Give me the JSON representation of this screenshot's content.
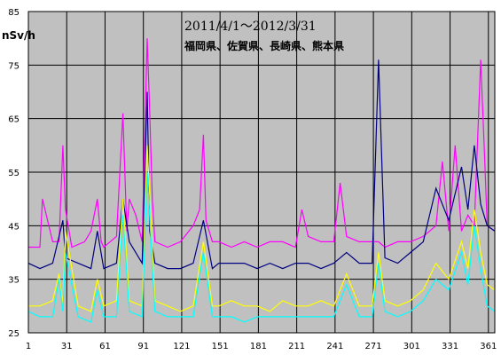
{
  "chart_data": {
    "type": "line",
    "title": "2011/4/1～2012/3/31",
    "subtitle": "福岡県、佐賀県、長崎県、熊本県",
    "ylabel": "nSv/h",
    "xlabel": "",
    "xlim": [
      1,
      366
    ],
    "ylim": [
      25,
      85
    ],
    "grid": true,
    "legend": "none",
    "background": "#c0c0c0",
    "x_ticks": [
      1,
      31,
      61,
      91,
      121,
      151,
      181,
      211,
      241,
      271,
      301,
      331,
      361
    ],
    "y_ticks": [
      25,
      35,
      45,
      55,
      65,
      75,
      85
    ],
    "series": [
      {
        "color": "#ff00ff",
        "x": [
          1,
          10,
          12,
          20,
          25,
          28,
          30,
          35,
          45,
          50,
          55,
          58,
          60,
          65,
          70,
          75,
          78,
          80,
          85,
          90,
          94,
          96,
          98,
          100,
          110,
          120,
          130,
          135,
          138,
          140,
          145,
          150,
          160,
          170,
          180,
          190,
          200,
          210,
          215,
          220,
          230,
          240,
          245,
          250,
          260,
          270,
          275,
          280,
          290,
          300,
          310,
          320,
          325,
          330,
          335,
          340,
          345,
          350,
          355,
          358,
          360,
          366
        ],
        "values": [
          41,
          41,
          50,
          42,
          42,
          60,
          48,
          41,
          42,
          44,
          50,
          42,
          41,
          42,
          43,
          66,
          44,
          50,
          47,
          42,
          80,
          66,
          50,
          42,
          41,
          42,
          45,
          48,
          62,
          46,
          42,
          42,
          41,
          42,
          41,
          42,
          42,
          41,
          48,
          43,
          42,
          42,
          53,
          43,
          42,
          42,
          42,
          41,
          42,
          42,
          43,
          45,
          57,
          44,
          60,
          44,
          47,
          45,
          76,
          58,
          45,
          44
        ]
      },
      {
        "color": "#000080",
        "x": [
          1,
          10,
          20,
          28,
          30,
          40,
          50,
          55,
          60,
          70,
          75,
          80,
          90,
          94,
          96,
          100,
          110,
          120,
          130,
          138,
          145,
          150,
          160,
          170,
          180,
          190,
          200,
          210,
          220,
          230,
          240,
          250,
          260,
          270,
          275,
          280,
          290,
          300,
          310,
          320,
          330,
          340,
          345,
          350,
          355,
          360,
          366
        ],
        "values": [
          38,
          37,
          38,
          46,
          39,
          38,
          37,
          44,
          37,
          38,
          50,
          42,
          38,
          70,
          44,
          38,
          37,
          37,
          38,
          46,
          37,
          38,
          38,
          38,
          37,
          38,
          37,
          38,
          38,
          37,
          38,
          40,
          38,
          38,
          76,
          39,
          38,
          40,
          42,
          52,
          46,
          56,
          48,
          60,
          49,
          45,
          44
        ]
      },
      {
        "color": "#ffff00",
        "x": [
          1,
          10,
          20,
          25,
          28,
          30,
          40,
          50,
          55,
          60,
          70,
          75,
          80,
          90,
          94,
          100,
          110,
          120,
          130,
          138,
          145,
          150,
          160,
          170,
          180,
          190,
          200,
          210,
          220,
          230,
          240,
          250,
          260,
          270,
          275,
          280,
          290,
          300,
          310,
          320,
          330,
          340,
          345,
          350,
          355,
          360,
          366
        ],
        "values": [
          30,
          30,
          31,
          36,
          30,
          44,
          30,
          29,
          35,
          30,
          31,
          50,
          31,
          30,
          60,
          31,
          30,
          29,
          30,
          42,
          30,
          30,
          31,
          30,
          30,
          29,
          31,
          30,
          30,
          31,
          30,
          36,
          30,
          30,
          40,
          31,
          30,
          31,
          33,
          38,
          35,
          42,
          37,
          48,
          40,
          34,
          33
        ]
      },
      {
        "color": "#00ffff",
        "x": [
          1,
          10,
          20,
          25,
          28,
          30,
          40,
          50,
          55,
          60,
          70,
          75,
          80,
          90,
          94,
          100,
          110,
          120,
          130,
          138,
          145,
          150,
          160,
          170,
          180,
          190,
          200,
          210,
          220,
          230,
          240,
          250,
          260,
          270,
          275,
          280,
          290,
          300,
          310,
          320,
          330,
          340,
          345,
          350,
          355,
          360,
          366
        ],
        "values": [
          29,
          28,
          28,
          35,
          29,
          40,
          28,
          27,
          33,
          28,
          28,
          47,
          29,
          28,
          55,
          29,
          28,
          28,
          28,
          40,
          28,
          28,
          28,
          27,
          28,
          28,
          28,
          28,
          28,
          28,
          28,
          34,
          28,
          28,
          38,
          29,
          28,
          29,
          31,
          35,
          33,
          40,
          34,
          45,
          37,
          30,
          29
        ]
      }
    ]
  }
}
